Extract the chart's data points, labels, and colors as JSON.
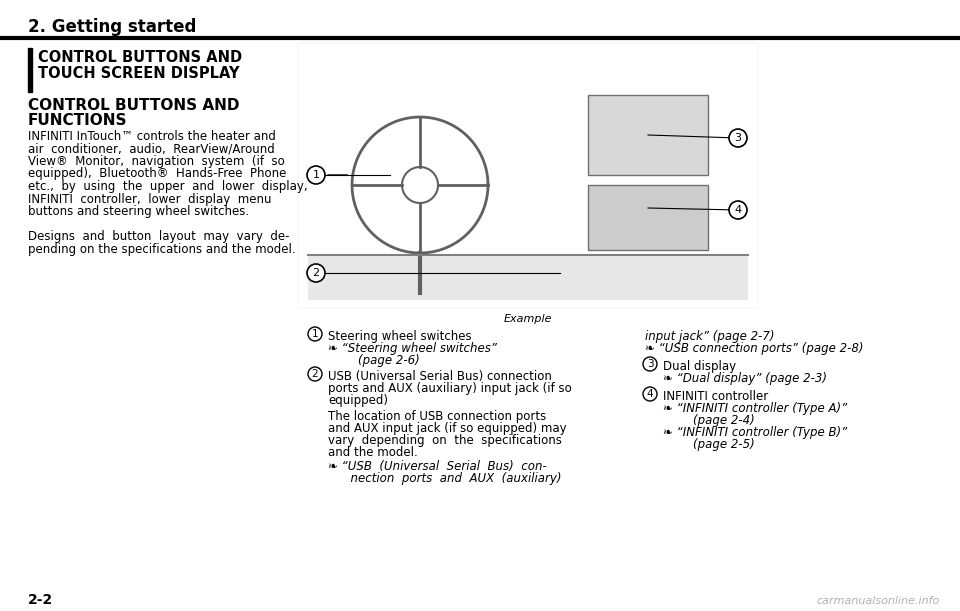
{
  "bg_color": "#ffffff",
  "header_text": "2. Getting started",
  "section_title_line1": "CONTROL BUTTONS AND",
  "section_title_line2": "TOUCH SCREEN DISPLAY",
  "subsection_line1": "CONTROL BUTTONS AND",
  "subsection_line2": "FUNCTIONS",
  "body_lines": [
    "INFINITI InTouch™ controls the heater and",
    "air  conditioner,  audio,  RearView/Around",
    "View®  Monitor,  navigation  system  (if  so",
    "equipped),  Bluetooth®  Hands-Free  Phone",
    "etc.,  by  using  the  upper  and  lower  display,",
    "INFINITI  controller,  lower  display  menu",
    "buttons and steering wheel switches.",
    "",
    "Designs  and  button  layout  may  vary  de-",
    "pending on the specifications and the model."
  ],
  "example_label": "Example",
  "cap1_title": "Steering wheel switches",
  "cap1_ref1": "❧ “Steering wheel switches”",
  "cap1_ref2": "        (page 2-6)",
  "cap2_title": "USB (Universal Serial Bus) connection",
  "cap2_title2": "ports and AUX (auxiliary) input jack (if so",
  "cap2_title3": "equipped)",
  "cap2_body1": "The location of USB connection ports",
  "cap2_body2": "and AUX input jack (if so equipped) may",
  "cap2_body3": "vary  depending  on  the  specifications",
  "cap2_body4": "and the model.",
  "cap2_ref1": "❧ “USB  (Universal  Serial  Bus)  con-",
  "cap2_ref2": "      nection  ports  and  AUX  (auxiliary)",
  "rcap_cont1": "input jack” (page 2-7)",
  "rcap_cont2": "❧ “USB connection ports” (page 2-8)",
  "cap3_title": "Dual display",
  "cap3_ref1": "❧ “Dual display” (page 2-3)",
  "cap4_title": "INFINITI controller",
  "cap4_ref1": "❧ “INFINITI controller (Type A)”",
  "cap4_ref2": "        (page 2-4)",
  "cap4_ref3": "❧ “INFINITI controller (Type B)”",
  "cap4_ref4": "        (page 2-5)",
  "page_number": "2-2",
  "watermark": "carmanualsonline.info"
}
